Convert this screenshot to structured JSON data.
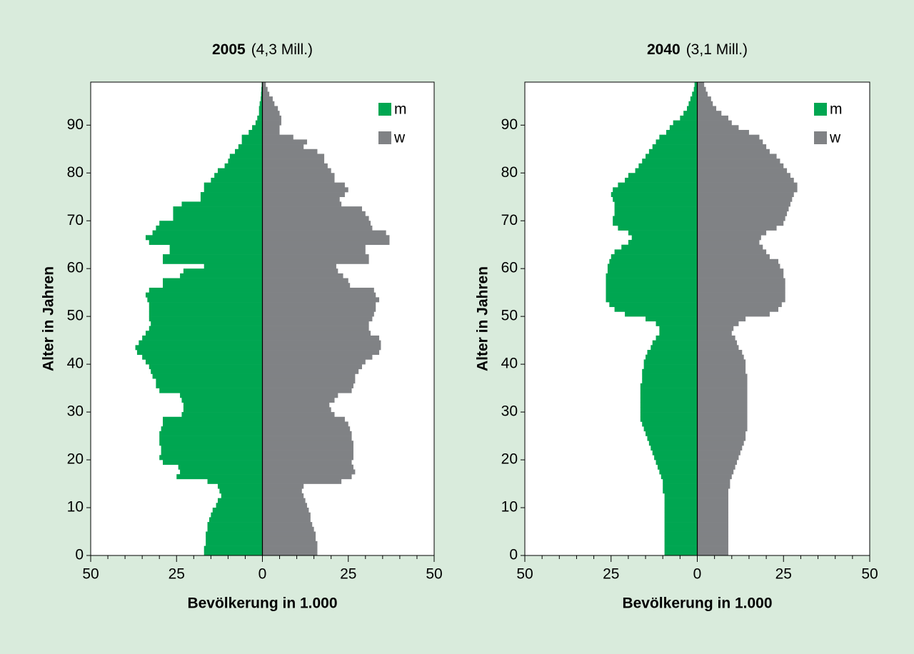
{
  "chart_data": [
    {
      "type": "pyramid",
      "title": "2005",
      "subtitle": "(4,3 Mill.)",
      "x_label": "Bevölkerung in 1.000",
      "y_label": "Alter in Jahren",
      "xlim": [
        -50,
        50
      ],
      "xticks": [
        {
          "value": -50,
          "label": "50"
        },
        {
          "value": -25,
          "label": "25"
        },
        0,
        25,
        50
      ],
      "xminorticks": [
        -45,
        -40,
        -35,
        -30,
        -20,
        -15,
        -10,
        -5,
        5,
        10,
        15,
        20,
        30,
        35,
        40,
        45
      ],
      "ylim": [
        0,
        99
      ],
      "yticks": [
        0,
        10,
        20,
        30,
        40,
        50,
        60,
        70,
        80,
        90
      ],
      "legend": "top-right",
      "y": [
        0,
        1,
        2,
        3,
        4,
        5,
        6,
        7,
        8,
        9,
        10,
        11,
        12,
        13,
        14,
        15,
        16,
        17,
        18,
        19,
        20,
        21,
        22,
        23,
        24,
        25,
        26,
        27,
        28,
        29,
        30,
        31,
        32,
        33,
        34,
        35,
        36,
        37,
        38,
        39,
        40,
        41,
        42,
        43,
        44,
        45,
        46,
        47,
        48,
        49,
        50,
        51,
        52,
        53,
        54,
        55,
        56,
        57,
        58,
        59,
        60,
        61,
        62,
        63,
        64,
        65,
        66,
        67,
        68,
        69,
        70,
        71,
        72,
        73,
        74,
        75,
        76,
        77,
        78,
        79,
        80,
        81,
        82,
        83,
        84,
        85,
        86,
        87,
        88,
        89,
        90,
        91,
        92,
        93,
        94,
        95,
        96,
        97,
        98
      ],
      "series": [
        {
          "name": "m",
          "color": "#00a651",
          "side": "left",
          "values": [
            17,
            17,
            16.5,
            16.5,
            16.5,
            16,
            16,
            15.5,
            15,
            14.5,
            13.5,
            13,
            12,
            12.5,
            13,
            16,
            25,
            24,
            24.5,
            29,
            30,
            29.5,
            29.5,
            30,
            30,
            30,
            29.5,
            29,
            29,
            23.5,
            23,
            23,
            23.5,
            24,
            30,
            31,
            31,
            32,
            32.5,
            33,
            34,
            35,
            36.5,
            37,
            36,
            35,
            34,
            33,
            32.5,
            33,
            33,
            33,
            33,
            33.5,
            34,
            33,
            29,
            29,
            24,
            23,
            17,
            29,
            29,
            27,
            27,
            33,
            34,
            32,
            31,
            30,
            26,
            26,
            26,
            23.5,
            18,
            18,
            17,
            17,
            15,
            14,
            13,
            11,
            10,
            9.5,
            8,
            7,
            6,
            6,
            4,
            3,
            2,
            1.5,
            1,
            1,
            0.8,
            0.5,
            0.4,
            0.3,
            0.2
          ]
        },
        {
          "name": "w",
          "color": "#808285",
          "side": "right",
          "values": [
            16,
            16,
            16,
            15.5,
            15.5,
            15,
            14.5,
            14,
            14,
            13.5,
            13,
            12.5,
            12,
            11.5,
            12,
            23,
            26,
            27,
            26.5,
            26,
            26.5,
            26.5,
            26.5,
            26.5,
            26,
            26,
            25.5,
            25,
            24,
            21,
            20,
            19.5,
            21,
            22,
            26,
            26.5,
            27,
            27,
            28,
            29,
            30,
            32,
            34,
            34.5,
            34.5,
            34,
            31.5,
            31,
            31,
            32,
            32.5,
            33,
            33,
            34,
            33,
            32.5,
            25.5,
            25,
            23.5,
            22,
            21.5,
            31,
            31,
            30,
            30,
            37,
            37,
            36,
            32,
            31.5,
            31,
            30,
            29,
            23,
            22.5,
            24,
            25,
            24,
            21,
            21,
            20,
            19,
            18,
            18,
            16,
            12,
            13,
            9,
            5,
            5,
            5.5,
            5.5,
            5,
            4.5,
            3.5,
            3,
            2,
            1.5,
            1
          ]
        }
      ]
    },
    {
      "type": "pyramid",
      "title": "2040",
      "subtitle": "(3,1 Mill.)",
      "x_label": "Bevölkerung in 1.000",
      "y_label": "Alter in Jahren",
      "xlim": [
        -50,
        50
      ],
      "xticks": [
        {
          "value": -50,
          "label": "50"
        },
        {
          "value": -25,
          "label": "25"
        },
        0,
        25,
        50
      ],
      "xminorticks": [
        -45,
        -40,
        -35,
        -30,
        -20,
        -15,
        -10,
        -5,
        5,
        10,
        15,
        20,
        30,
        35,
        40,
        45
      ],
      "ylim": [
        0,
        99
      ],
      "yticks": [
        0,
        10,
        20,
        30,
        40,
        50,
        60,
        70,
        80,
        90
      ],
      "legend": "top-right",
      "y": [
        0,
        1,
        2,
        3,
        4,
        5,
        6,
        7,
        8,
        9,
        10,
        11,
        12,
        13,
        14,
        15,
        16,
        17,
        18,
        19,
        20,
        21,
        22,
        23,
        24,
        25,
        26,
        27,
        28,
        29,
        30,
        31,
        32,
        33,
        34,
        35,
        36,
        37,
        38,
        39,
        40,
        41,
        42,
        43,
        44,
        45,
        46,
        47,
        48,
        49,
        50,
        51,
        52,
        53,
        54,
        55,
        56,
        57,
        58,
        59,
        60,
        61,
        62,
        63,
        64,
        65,
        66,
        67,
        68,
        69,
        70,
        71,
        72,
        73,
        74,
        75,
        76,
        77,
        78,
        79,
        80,
        81,
        82,
        83,
        84,
        85,
        86,
        87,
        88,
        89,
        90,
        91,
        92,
        93,
        94,
        95,
        96,
        97,
        98
      ],
      "series": [
        {
          "name": "m",
          "color": "#00a651",
          "side": "left",
          "values": [
            9.5,
            9.5,
            9.5,
            9.5,
            9.5,
            9.5,
            9.5,
            9.5,
            9.5,
            9.5,
            9.5,
            9.5,
            9.5,
            10,
            10,
            10,
            10.5,
            11,
            11.5,
            12,
            12.5,
            13,
            13.5,
            14,
            14.5,
            15,
            15.5,
            16,
            16.5,
            16.5,
            16.5,
            16.5,
            16.5,
            16.5,
            16.5,
            16.5,
            16,
            16,
            16,
            15.5,
            15.5,
            15,
            14.5,
            13.5,
            13,
            12,
            11,
            11,
            12,
            15,
            21,
            24,
            25.5,
            26.5,
            26.5,
            26.5,
            26.5,
            26.5,
            26.5,
            26,
            26,
            25.5,
            25,
            24,
            22,
            20,
            19,
            20,
            23,
            24.5,
            24.5,
            24,
            24,
            24,
            24.5,
            25,
            24.5,
            23,
            21,
            20,
            18,
            17,
            16,
            15,
            14,
            13,
            12,
            11,
            9,
            8,
            7,
            5,
            4,
            3,
            2.5,
            2,
            1.5,
            1,
            0.8
          ]
        },
        {
          "name": "w",
          "color": "#808285",
          "side": "right",
          "values": [
            9,
            9,
            9,
            9,
            9,
            9,
            9,
            9,
            9,
            9,
            9,
            9,
            9,
            9,
            9.5,
            9.5,
            10,
            10.5,
            11,
            11.5,
            12,
            12.5,
            13,
            13.5,
            14,
            14,
            14.5,
            14.5,
            14.5,
            14.5,
            14.5,
            14.5,
            14.5,
            14.5,
            14.5,
            14.5,
            14.5,
            14.5,
            14,
            14,
            14,
            13.5,
            13,
            12,
            11.5,
            11,
            10,
            10.5,
            12,
            14,
            21,
            23.5,
            24.5,
            25.5,
            25.5,
            25.5,
            25.5,
            25.5,
            25,
            25,
            24,
            23.5,
            21,
            20,
            19,
            18,
            18.5,
            20,
            23,
            25,
            25.5,
            26,
            26.5,
            27,
            27.5,
            28,
            29,
            29,
            28,
            27,
            26,
            25,
            24,
            23,
            21,
            20,
            19,
            18,
            15,
            12,
            10,
            9,
            7,
            5.5,
            4.5,
            4,
            3,
            2.5,
            2
          ]
        }
      ]
    }
  ]
}
